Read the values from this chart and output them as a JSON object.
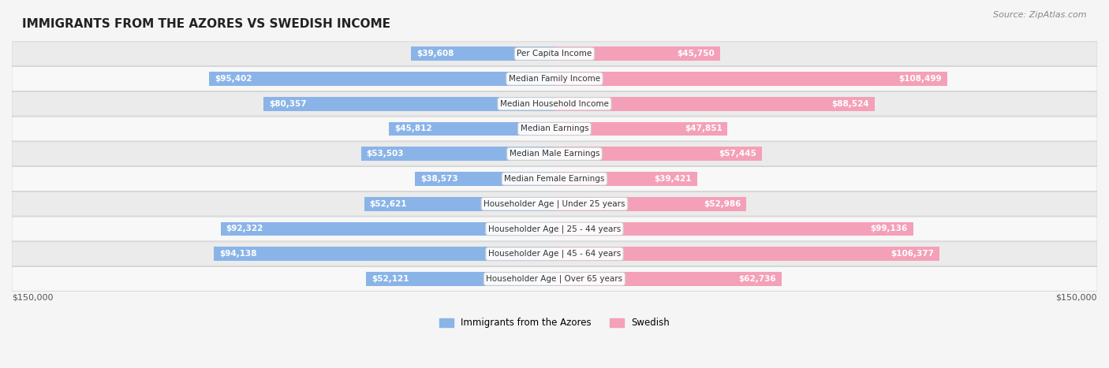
{
  "title": "IMMIGRANTS FROM THE AZORES VS SWEDISH INCOME",
  "source": "Source: ZipAtlas.com",
  "categories": [
    "Per Capita Income",
    "Median Family Income",
    "Median Household Income",
    "Median Earnings",
    "Median Male Earnings",
    "Median Female Earnings",
    "Householder Age | Under 25 years",
    "Householder Age | 25 - 44 years",
    "Householder Age | 45 - 64 years",
    "Householder Age | Over 65 years"
  ],
  "azores_values": [
    39608,
    95402,
    80357,
    45812,
    53503,
    38573,
    52621,
    92322,
    94138,
    52121
  ],
  "swedish_values": [
    45750,
    108499,
    88524,
    47851,
    57445,
    39421,
    52986,
    99136,
    106377,
    62736
  ],
  "azores_labels": [
    "$39,608",
    "$95,402",
    "$80,357",
    "$45,812",
    "$53,503",
    "$38,573",
    "$52,621",
    "$92,322",
    "$94,138",
    "$52,121"
  ],
  "swedish_labels": [
    "$45,750",
    "$108,499",
    "$88,524",
    "$47,851",
    "$57,445",
    "$39,421",
    "$52,986",
    "$99,136",
    "$106,377",
    "$62,736"
  ],
  "azores_color": "#8ab4e8",
  "azores_color_dark": "#5b8fd4",
  "swedish_color": "#f4a0b8",
  "swedish_color_dark": "#e8607a",
  "max_value": 150000,
  "xlabel_left": "$150,000",
  "xlabel_right": "$150,000",
  "legend_azores": "Immigrants from the Azores",
  "legend_swedish": "Swedish",
  "bg_color": "#f5f5f5",
  "row_bg_color": "#ffffff",
  "row_alt_bg_color": "#f0f0f0"
}
